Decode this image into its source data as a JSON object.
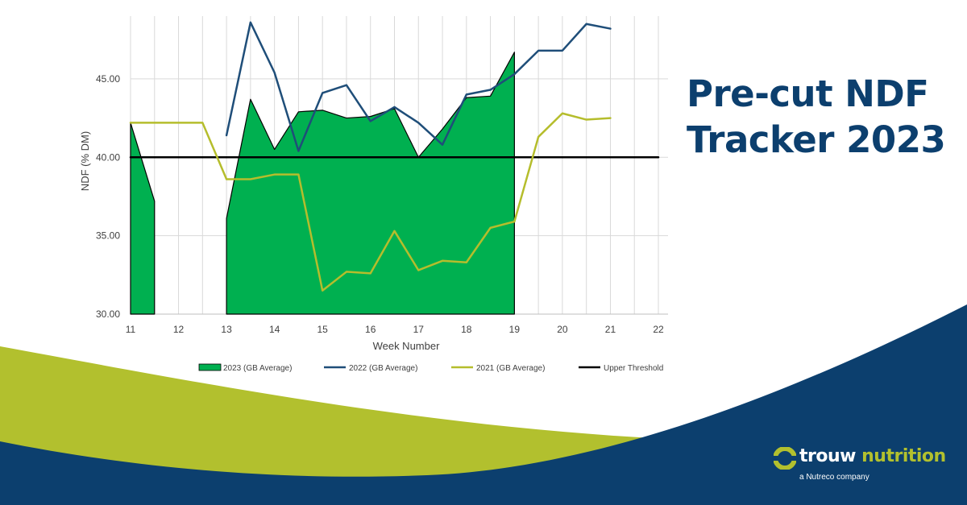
{
  "banner": {
    "title_line1": "Pre-cut NDF",
    "title_line2": "Tracker 2023"
  },
  "brand": {
    "word1": "trouw",
    "word2": "nutrition",
    "tagline": "a Nutreco company",
    "icon": "trouw-nutrition-logo-icon"
  },
  "colors": {
    "navy": "#0c3f6e",
    "lime": "#b2c02e",
    "green_fill": "#00b050",
    "series_2022": "#1f4e79",
    "series_2021": "#b5bd2c",
    "threshold": "#000000"
  },
  "chart_data": {
    "type": "line",
    "xlabel": "Week Number",
    "ylabel": "NDF (% DM)",
    "xlim": [
      11,
      22
    ],
    "ylim": [
      30,
      49
    ],
    "xticks": [
      11,
      12,
      13,
      14,
      15,
      16,
      17,
      18,
      19,
      20,
      21,
      22
    ],
    "yticks": [
      "30.00",
      "35.00",
      "40.00",
      "45.00"
    ],
    "ytick_values": [
      30,
      35,
      40,
      45
    ],
    "grid": "vertical and horizontal major gridlines",
    "legend_position": "bottom",
    "series": [
      {
        "name": "2023 (GB Average)",
        "style": "area",
        "segments": [
          {
            "x": [
              11,
              11.5
            ],
            "y": [
              42.2,
              37.2
            ]
          },
          {
            "x": [
              13,
              13.5,
              14,
              14.5,
              15,
              15.5,
              16,
              16.5,
              17,
              17.5,
              18,
              18.5,
              19
            ],
            "y": [
              36.1,
              43.7,
              40.5,
              42.9,
              43.0,
              42.5,
              42.6,
              43.1,
              40.0,
              41.8,
              43.8,
              43.9,
              46.7
            ]
          }
        ]
      },
      {
        "name": "2022 (GB Average)",
        "style": "line",
        "x": [
          13,
          13.5,
          14,
          14.5,
          15,
          15.5,
          16,
          16.5,
          17,
          17.5,
          18,
          18.5,
          19,
          19.5,
          20,
          20.5,
          21
        ],
        "y": [
          41.4,
          48.6,
          45.4,
          40.4,
          44.1,
          44.6,
          42.3,
          43.2,
          42.2,
          40.8,
          44.0,
          44.3,
          45.3,
          46.8,
          46.8,
          48.5,
          48.2
        ]
      },
      {
        "name": "2021 (GB Average)",
        "style": "line",
        "x": [
          11,
          11.5,
          12,
          12.5,
          13,
          13.5,
          14,
          14.5,
          15,
          15.5,
          16,
          16.5,
          17,
          17.5,
          18,
          18.5,
          19,
          19.5,
          20,
          20.5,
          21
        ],
        "y": [
          42.2,
          42.2,
          42.2,
          42.2,
          38.6,
          38.6,
          38.9,
          38.9,
          31.5,
          32.7,
          32.6,
          35.3,
          32.8,
          33.4,
          33.3,
          35.5,
          35.9,
          41.3,
          42.8,
          42.4,
          42.5
        ]
      },
      {
        "name": "Upper Threshold",
        "style": "line",
        "x": [
          11,
          22
        ],
        "y": [
          40,
          40
        ]
      }
    ]
  }
}
